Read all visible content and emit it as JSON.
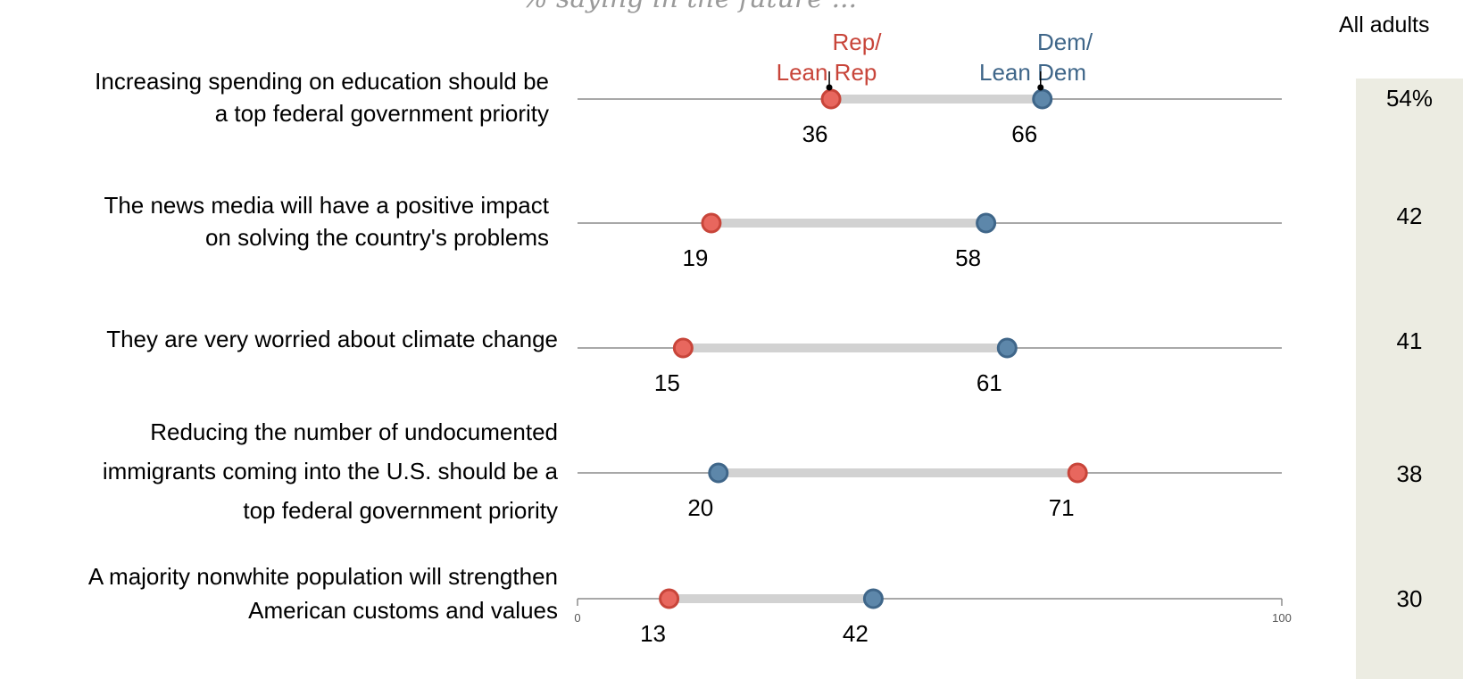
{
  "chart_data": {
    "type": "dot-plot",
    "subtitle": "% saying in the future ...",
    "series": [
      {
        "name": "Rep/ Lean Rep",
        "label_lines": [
          "Rep/",
          "Lean Rep"
        ],
        "color": "#c8453a",
        "fill": "#e8675e"
      },
      {
        "name": "Dem/ Lean Dem",
        "label_lines": [
          "Dem/",
          "Lean Dem"
        ],
        "color": "#3f6689",
        "fill": "#5d87aa"
      }
    ],
    "all_adults_header": "All adults",
    "xlim": [
      0,
      100
    ],
    "axis_ticks": [
      "0",
      "100"
    ],
    "rows": [
      {
        "label_lines": [
          "Increasing spending on education should be",
          "a top federal government priority"
        ],
        "rep": 36,
        "dem": 66,
        "all": "54%"
      },
      {
        "label_lines": [
          "The news media will have a positive impact",
          "on solving the country's problems"
        ],
        "rep": 19,
        "dem": 58,
        "all": "42"
      },
      {
        "label_lines": [
          "They are very worried about climate change"
        ],
        "rep": 15,
        "dem": 61,
        "all": "41"
      },
      {
        "label_lines": [
          "Reducing the number of undocumented",
          "immigrants coming into the U.S. should be a",
          "top federal government priority"
        ],
        "rep": 71,
        "dem": 20,
        "all": "38"
      },
      {
        "label_lines": [
          "A majority nonwhite population will strengthen",
          "American customs and values"
        ],
        "rep": 13,
        "dem": 42,
        "all": "30"
      }
    ]
  }
}
